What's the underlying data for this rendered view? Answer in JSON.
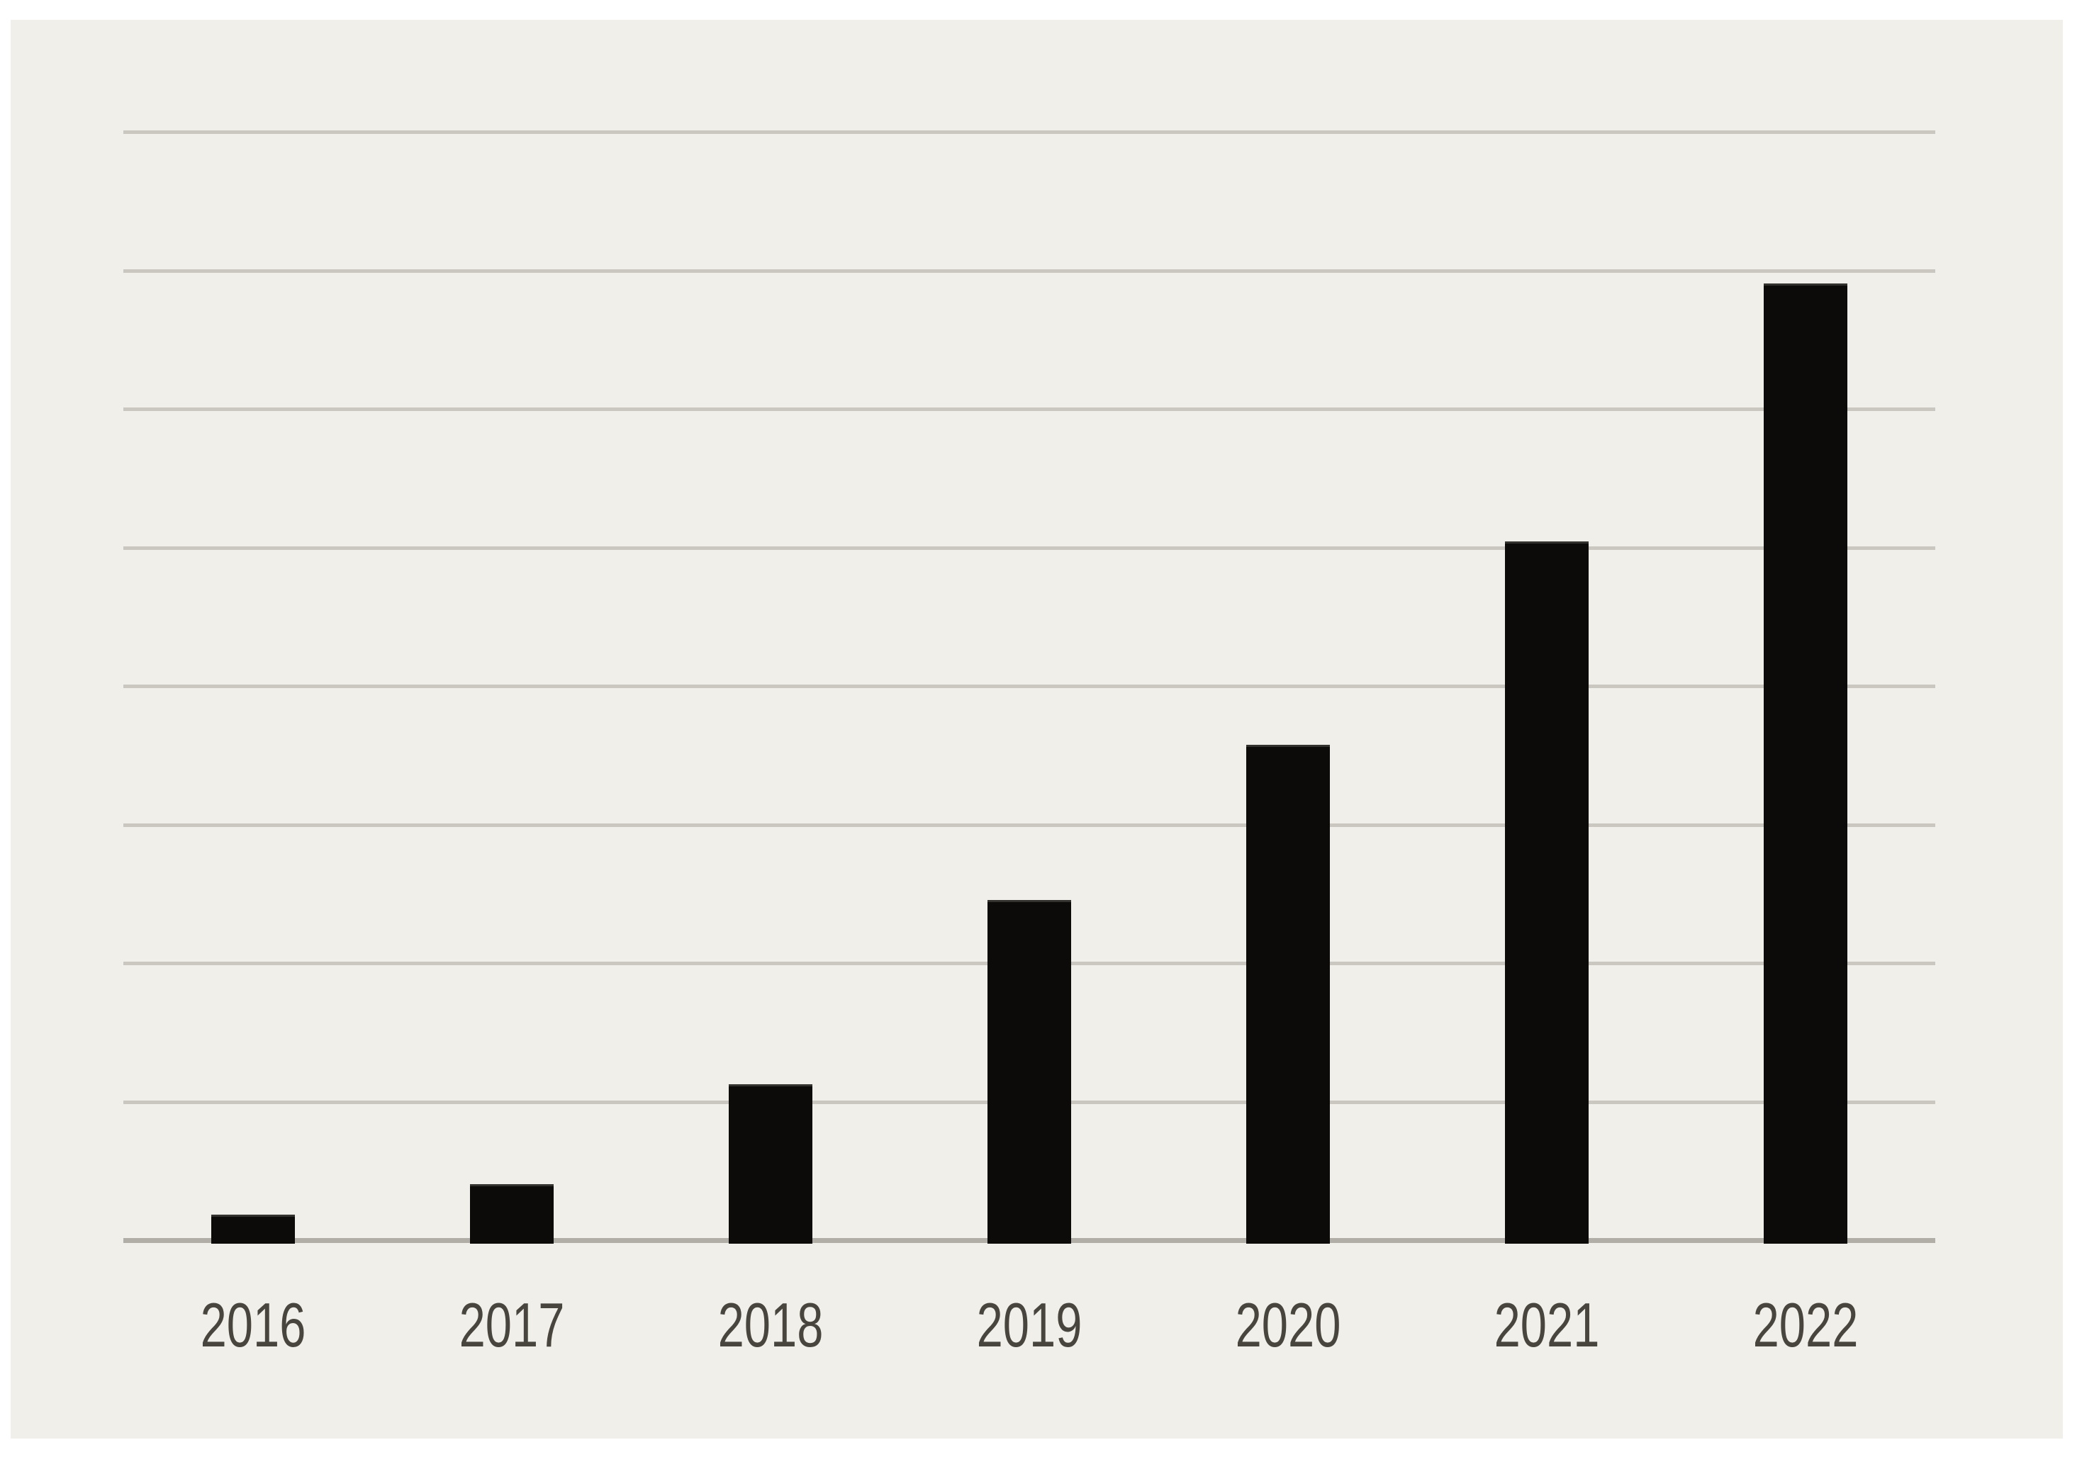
{
  "page": {
    "background_color": "#ffffff",
    "panel_background_color": "#f1efe9"
  },
  "chart_data": {
    "type": "bar",
    "title": "",
    "xlabel": "",
    "ylabel": "",
    "categories": [
      "2016",
      "2017",
      "2018",
      "2019",
      "2020",
      "2021",
      "2022"
    ],
    "values": [
      0.17,
      0.39,
      1.11,
      2.44,
      3.56,
      5.03,
      6.89
    ],
    "value_unit": "gridline intervals (y-axis has no tick labels; 1 unit = one horizontal gridline spacing)",
    "ylim": [
      0,
      8
    ],
    "gridline_interval": 1,
    "grid": "horizontal-only",
    "legend": "none",
    "bar_color": "#0d0b09",
    "gridline_color": "#cac7c0",
    "axis_line_color": "#b1aea7",
    "tick_label_color": "#48453f"
  }
}
